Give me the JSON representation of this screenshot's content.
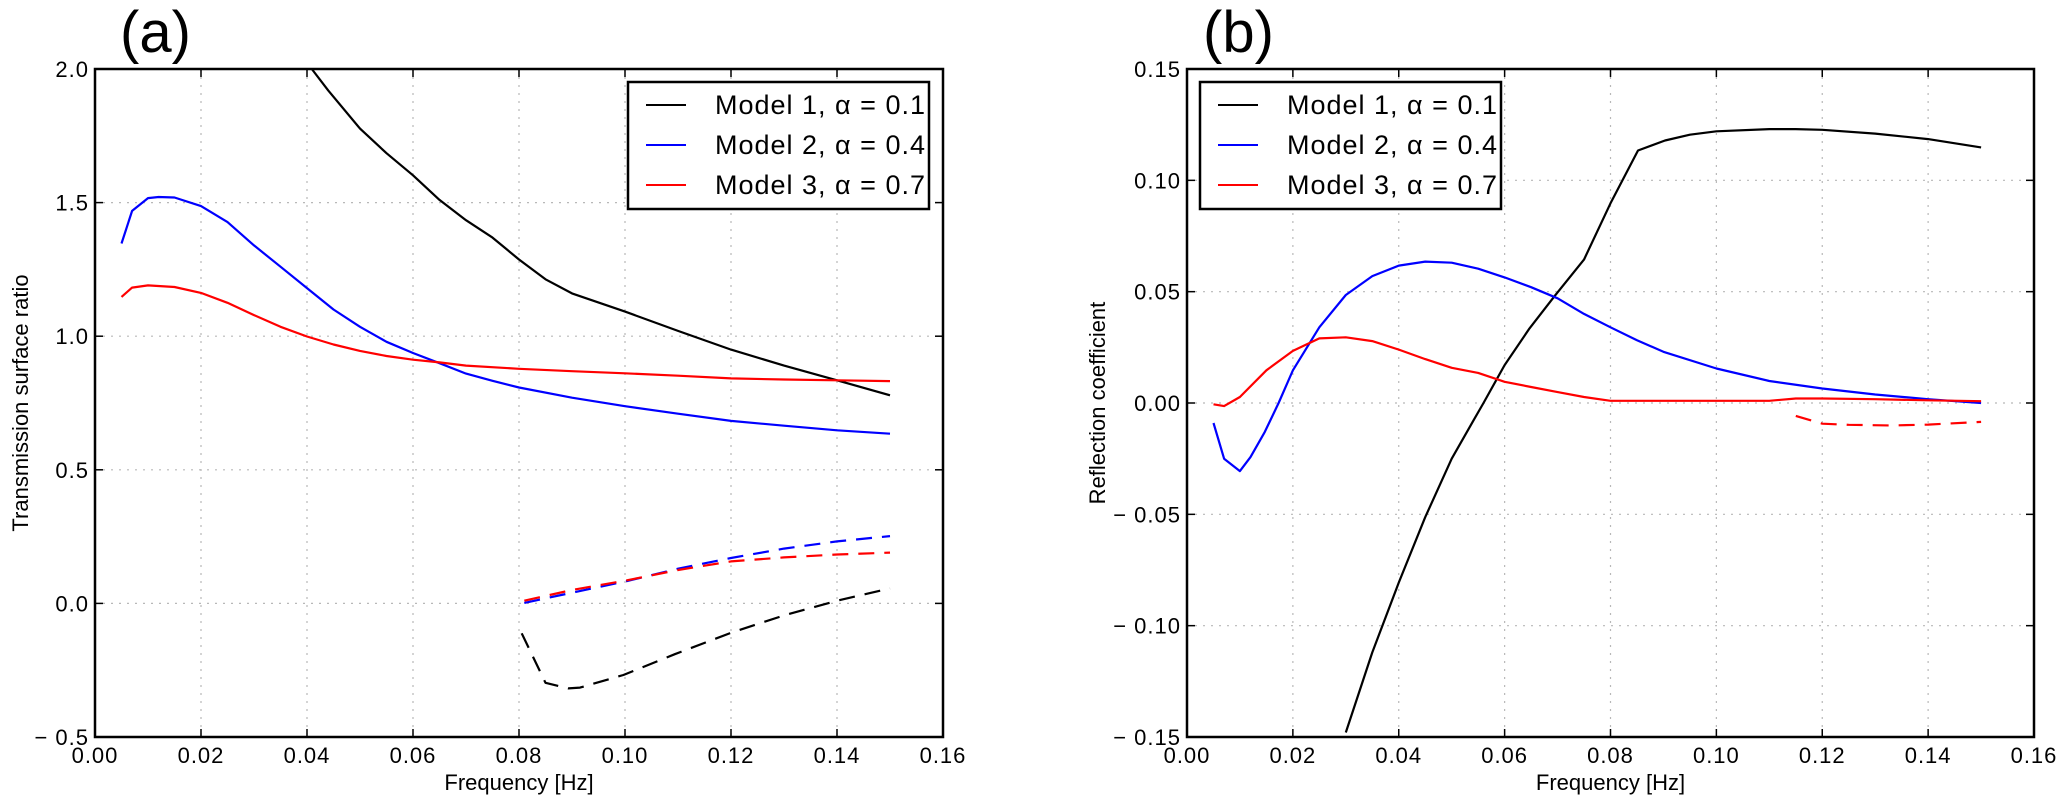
{
  "chart_data": [
    {
      "panel": "(a)",
      "type": "line",
      "title": "",
      "xlabel": "Frequency [Hz]",
      "ylabel": "Transmission surface ratio",
      "xlim": [
        0.0,
        0.16
      ],
      "ylim": [
        -0.5,
        2.0
      ],
      "xticks": [
        0.0,
        0.02,
        0.04,
        0.06,
        0.08,
        0.1,
        0.12,
        0.14,
        0.16
      ],
      "xtick_labels": [
        "0.00",
        "0.02",
        "0.04",
        "0.06",
        "0.08",
        "0.10",
        "0.12",
        "0.14",
        "0.16"
      ],
      "yticks": [
        -0.5,
        0.0,
        0.5,
        1.0,
        1.5,
        2.0
      ],
      "ytick_labels": [
        "− 0.5",
        "0.0",
        "0.5",
        "1.0",
        "1.5",
        "2.0"
      ],
      "grid": true,
      "legend_position": "top-right",
      "legend": [
        {
          "label": "Model 1, α = 0.1",
          "color": "#000000"
        },
        {
          "label": "Model 2, α = 0.4",
          "color": "#0000ff"
        },
        {
          "label": "Model 3, α = 0.7",
          "color": "#ff0000"
        }
      ],
      "series": [
        {
          "name": "Model 1, α = 0.1",
          "color": "#000000",
          "style": "solid",
          "x": [
            0.0409,
            0.044,
            0.05,
            0.055,
            0.06,
            0.065,
            0.07,
            0.075,
            0.08,
            0.085,
            0.09,
            0.1,
            0.11,
            0.12,
            0.13,
            0.14,
            0.15
          ],
          "y": [
            2.0,
            1.92,
            1.777,
            1.685,
            1.602,
            1.51,
            1.434,
            1.369,
            1.287,
            1.213,
            1.16,
            1.092,
            1.02,
            0.95,
            0.89,
            0.835,
            0.779
          ]
        },
        {
          "name": "Model 2, α = 0.4",
          "color": "#0000ff",
          "style": "solid",
          "x": [
            0.005,
            0.007,
            0.01,
            0.012,
            0.015,
            0.02,
            0.025,
            0.03,
            0.035,
            0.04,
            0.045,
            0.05,
            0.055,
            0.06,
            0.065,
            0.07,
            0.075,
            0.08,
            0.09,
            0.1,
            0.11,
            0.12,
            0.13,
            0.14,
            0.15
          ],
          "y": [
            1.347,
            1.469,
            1.517,
            1.521,
            1.519,
            1.487,
            1.427,
            1.34,
            1.26,
            1.18,
            1.1,
            1.035,
            0.979,
            0.937,
            0.899,
            0.86,
            0.833,
            0.808,
            0.77,
            0.738,
            0.71,
            0.683,
            0.665,
            0.648,
            0.635
          ]
        },
        {
          "name": "Model 3, α = 0.7",
          "color": "#ff0000",
          "style": "solid",
          "x": [
            0.005,
            0.007,
            0.01,
            0.015,
            0.02,
            0.025,
            0.03,
            0.035,
            0.04,
            0.045,
            0.05,
            0.055,
            0.06,
            0.065,
            0.07,
            0.08,
            0.09,
            0.1,
            0.11,
            0.12,
            0.13,
            0.14,
            0.15
          ],
          "y": [
            1.147,
            1.182,
            1.19,
            1.184,
            1.162,
            1.125,
            1.079,
            1.035,
            0.999,
            0.969,
            0.945,
            0.926,
            0.912,
            0.902,
            0.89,
            0.878,
            0.869,
            0.861,
            0.852,
            0.842,
            0.838,
            0.835,
            0.832
          ]
        },
        {
          "name": "Model 1 (dashed)",
          "color": "#000000",
          "style": "dashed",
          "x": [
            0.0805,
            0.085,
            0.0893,
            0.0915,
            0.0997,
            0.1094,
            0.12,
            0.13,
            0.14,
            0.15
          ],
          "y": [
            -0.112,
            -0.297,
            -0.318,
            -0.315,
            -0.268,
            -0.19,
            -0.11,
            -0.045,
            0.01,
            0.056
          ]
        },
        {
          "name": "Model 2 (dashed)",
          "color": "#0000ff",
          "style": "dashed",
          "x": [
            0.081,
            0.09,
            0.1,
            0.11,
            0.12,
            0.13,
            0.14,
            0.15
          ],
          "y": [
            0.002,
            0.04,
            0.082,
            0.13,
            0.17,
            0.205,
            0.232,
            0.252
          ]
        },
        {
          "name": "Model 3 (dashed)",
          "color": "#ff0000",
          "style": "dashed",
          "x": [
            0.081,
            0.09,
            0.1,
            0.11,
            0.12,
            0.13,
            0.14,
            0.15
          ],
          "y": [
            0.01,
            0.05,
            0.085,
            0.125,
            0.157,
            0.172,
            0.183,
            0.19
          ]
        }
      ]
    },
    {
      "panel": "(b)",
      "type": "line",
      "title": "",
      "xlabel": "Frequency [Hz]",
      "ylabel": "Reflection coefficient",
      "xlim": [
        0.0,
        0.16
      ],
      "ylim": [
        -0.15,
        0.15
      ],
      "xticks": [
        0.0,
        0.02,
        0.04,
        0.06,
        0.08,
        0.1,
        0.12,
        0.14,
        0.16
      ],
      "xtick_labels": [
        "0.00",
        "0.02",
        "0.04",
        "0.06",
        "0.08",
        "0.10",
        "0.12",
        "0.14",
        "0.16"
      ],
      "yticks": [
        -0.15,
        -0.1,
        -0.05,
        0.0,
        0.05,
        0.1,
        0.15
      ],
      "ytick_labels": [
        "− 0.15",
        "− 0.10",
        "− 0.05",
        "0.00",
        "0.05",
        "0.10",
        "0.15"
      ],
      "grid": true,
      "legend_position": "top-left",
      "legend": [
        {
          "label": "Model 1, α = 0.1",
          "color": "#000000"
        },
        {
          "label": "Model 2, α = 0.4",
          "color": "#0000ff"
        },
        {
          "label": "Model 3, α = 0.7",
          "color": "#ff0000"
        }
      ],
      "series": [
        {
          "name": "Model 1, α = 0.1",
          "color": "#000000",
          "style": "solid",
          "x": [
            0.03,
            0.035,
            0.04,
            0.045,
            0.05,
            0.0542,
            0.056,
            0.06,
            0.0647,
            0.0695,
            0.075,
            0.08,
            0.0852,
            0.0903,
            0.095,
            0.1,
            0.11,
            0.115,
            0.12,
            0.13,
            0.14,
            0.15
          ],
          "y": [
            -0.148,
            -0.112,
            -0.0806,
            -0.0513,
            -0.025,
            -0.0075,
            0.0,
            0.017,
            0.0335,
            0.0482,
            0.0644,
            0.0897,
            0.1134,
            0.1179,
            0.1205,
            0.122,
            0.123,
            0.123,
            0.1227,
            0.121,
            0.1185,
            0.1148
          ]
        },
        {
          "name": "Model 2, α = 0.4",
          "color": "#0000ff",
          "style": "solid",
          "x": [
            0.005,
            0.007,
            0.01,
            0.012,
            0.0147,
            0.0173,
            0.02,
            0.025,
            0.03,
            0.035,
            0.04,
            0.045,
            0.05,
            0.055,
            0.06,
            0.065,
            0.07,
            0.075,
            0.08,
            0.085,
            0.09,
            0.1,
            0.11,
            0.12,
            0.13,
            0.14,
            0.15
          ],
          "y": [
            -0.009,
            -0.025,
            -0.0306,
            -0.0243,
            -0.013,
            0.0,
            0.0147,
            0.034,
            0.0485,
            0.057,
            0.0617,
            0.0635,
            0.063,
            0.0603,
            0.0564,
            0.052,
            0.047,
            0.04,
            0.034,
            0.0282,
            0.023,
            0.0155,
            0.0099,
            0.0065,
            0.0038,
            0.0017,
            0.0
          ]
        },
        {
          "name": "Model 3, α = 0.7",
          "color": "#ff0000",
          "style": "solid",
          "x": [
            0.005,
            0.007,
            0.01,
            0.015,
            0.02,
            0.025,
            0.03,
            0.035,
            0.04,
            0.045,
            0.05,
            0.055,
            0.06,
            0.065,
            0.07,
            0.075,
            0.08,
            0.09,
            0.1,
            0.11,
            0.115,
            0.12,
            0.13,
            0.14,
            0.15
          ],
          "y": [
            -0.0006,
            -0.0014,
            0.0027,
            0.0147,
            0.0234,
            0.029,
            0.0295,
            0.0278,
            0.024,
            0.0197,
            0.0158,
            0.0135,
            0.0095,
            0.0072,
            0.0049,
            0.0027,
            0.001,
            0.001,
            0.001,
            0.001,
            0.002,
            0.002,
            0.0017,
            0.0012,
            0.0008
          ]
        },
        {
          "name": "Model 3 (dashed)",
          "color": "#ff0000",
          "style": "dashed",
          "x": [
            0.115,
            0.12,
            0.125,
            0.133,
            0.14,
            0.15
          ],
          "y": [
            -0.0058,
            -0.0093,
            -0.0098,
            -0.0101,
            -0.0097,
            -0.0085
          ]
        }
      ]
    }
  ]
}
